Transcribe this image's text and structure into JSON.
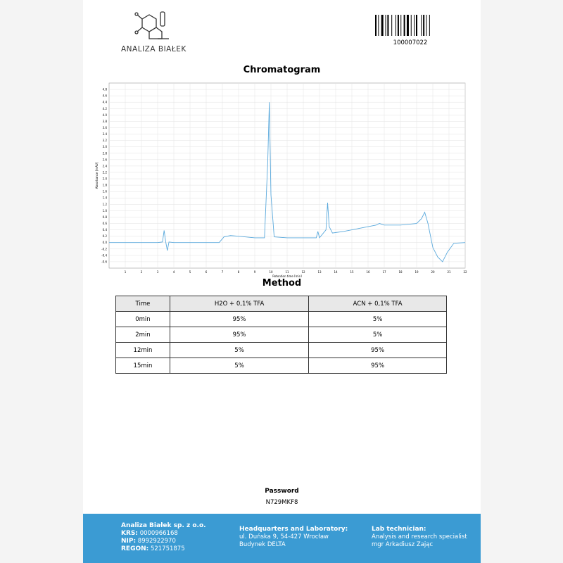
{
  "header": {
    "logo_text": "ANALIZA BIAŁEK",
    "barcode_number": "100007022"
  },
  "chromatogram": {
    "title": "Chromatogram",
    "chart_data": {
      "type": "line",
      "x_label": "Retention time [min]",
      "y_label": "Absorbance [mAU]",
      "xlim": [
        0,
        22
      ],
      "ylim": [
        -0.8,
        5.0
      ],
      "xticks": [
        1,
        2,
        3,
        4,
        5,
        6,
        7,
        8,
        9,
        10,
        11,
        12,
        13,
        14,
        15,
        16,
        17,
        18,
        19,
        20,
        21,
        22
      ],
      "yticks": [
        -0.6,
        -0.4,
        -0.2,
        {
          "value": 0,
          "label": "0.0"
        },
        0.2,
        0.4,
        0.6,
        0.8,
        {
          "value": 1,
          "label": "1.0"
        },
        1.2,
        1.4,
        1.6,
        1.8,
        {
          "value": 2,
          "label": "2.0"
        },
        2.2,
        2.4,
        2.6,
        2.8,
        {
          "value": 3,
          "label": "3.0"
        },
        3.2,
        3.4,
        3.6,
        3.8,
        {
          "value": 4,
          "label": "4.0"
        },
        4.2,
        4.4,
        4.6,
        4.8
      ],
      "grid": true,
      "x": [
        0,
        1,
        2,
        3,
        3.3,
        3.4,
        3.5,
        3.6,
        3.7,
        4,
        5,
        6,
        6.8,
        7.1,
        7.5,
        8,
        9,
        9.6,
        9.8,
        9.9,
        10,
        10.2,
        11,
        12,
        12.8,
        12.9,
        13,
        13.4,
        13.5,
        13.6,
        13.8,
        14.5,
        15.5,
        16.5,
        16.7,
        17,
        18,
        19,
        19.3,
        19.5,
        19.7,
        20,
        20.3,
        20.6,
        20.9,
        21.3,
        22
      ],
      "series": [
        {
          "name": "Signal",
          "color": "#5aa9dc",
          "values": [
            0,
            0,
            0,
            0,
            0.02,
            0.38,
            0.02,
            -0.25,
            0.02,
            0,
            0,
            0,
            0,
            0.18,
            0.22,
            0.2,
            0.15,
            0.15,
            2.5,
            4.4,
            1.5,
            0.18,
            0.15,
            0.15,
            0.15,
            0.35,
            0.15,
            0.4,
            1.25,
            0.5,
            0.3,
            0.35,
            0.45,
            0.55,
            0.6,
            0.55,
            0.55,
            0.6,
            0.75,
            0.95,
            0.6,
            -0.15,
            -0.45,
            -0.6,
            -0.3,
            -0.02,
            0
          ]
        }
      ]
    }
  },
  "method": {
    "title": "Method",
    "table": {
      "header": [
        "Time",
        "H2O + 0,1% TFA",
        "ACN + 0,1% TFA"
      ],
      "rows": [
        [
          "0min",
          "95%",
          "5%"
        ],
        [
          "2min",
          "95%",
          "5%"
        ],
        [
          "12min",
          "5%",
          "95%"
        ],
        [
          "15min",
          "5%",
          "95%"
        ]
      ]
    }
  },
  "password": {
    "label": "Password",
    "value": "N729MKF8"
  },
  "footer": {
    "company": {
      "name": "Analiza Białek sp. z o.o.",
      "krs_label": "KRS:",
      "krs": "0000966168",
      "nip_label": "NIP:",
      "nip": "8992922970",
      "regon_label": "REGON:",
      "regon": "521751875"
    },
    "hq": {
      "title": "Headquarters and Laboratory:",
      "address": "ul. Duńska 9, 54-427 Wrocław",
      "building": "Budynek DELTA"
    },
    "lab": {
      "title": "Lab technician:",
      "role": "Analysis and research specialist",
      "name": "mgr Arkadiusz Zając"
    }
  }
}
